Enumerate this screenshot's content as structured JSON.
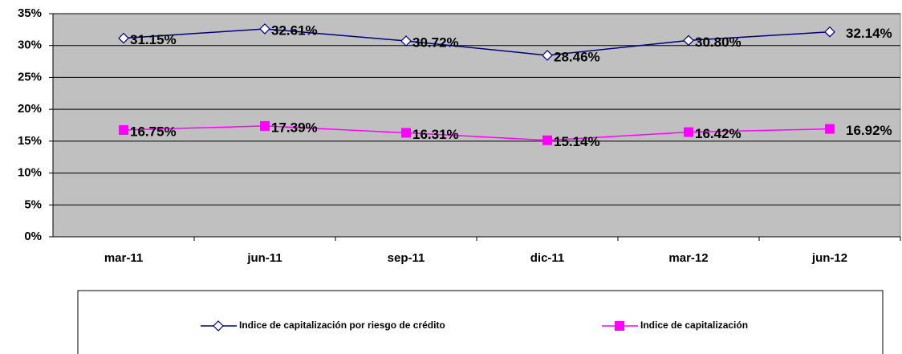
{
  "chart_data": {
    "type": "line",
    "categories": [
      "mar-11",
      "jun-11",
      "sep-11",
      "dic-11",
      "mar-12",
      "jun-12"
    ],
    "series": [
      {
        "name": "Indice de capitalización por riesgo de crédito",
        "color": "#000080",
        "marker": "diamond",
        "values": [
          31.15,
          32.61,
          30.72,
          28.46,
          30.8,
          32.14
        ],
        "value_labels": [
          "31.15%",
          "32.61%",
          "30.72%",
          "28.46%",
          "30.80%",
          "32.14%"
        ]
      },
      {
        "name": "Indice de capitalización",
        "color": "#ff00ff",
        "marker": "square",
        "values": [
          16.75,
          17.39,
          16.31,
          15.14,
          16.42,
          16.92
        ],
        "value_labels": [
          "16.75%",
          "17.39%",
          "16.31%",
          "15.14%",
          "16.42%",
          "16.92%"
        ]
      }
    ],
    "ylim": [
      0,
      35
    ],
    "yticks": [
      {
        "value": 0,
        "label": "0%"
      },
      {
        "value": 5,
        "label": "5%"
      },
      {
        "value": 10,
        "label": "10%"
      },
      {
        "value": 15,
        "label": "15%"
      },
      {
        "value": 20,
        "label": "20%"
      },
      {
        "value": 25,
        "label": "25%"
      },
      {
        "value": 30,
        "label": "30%"
      },
      {
        "value": 35,
        "label": "35%"
      }
    ],
    "grid": true,
    "legend": "bottom"
  }
}
